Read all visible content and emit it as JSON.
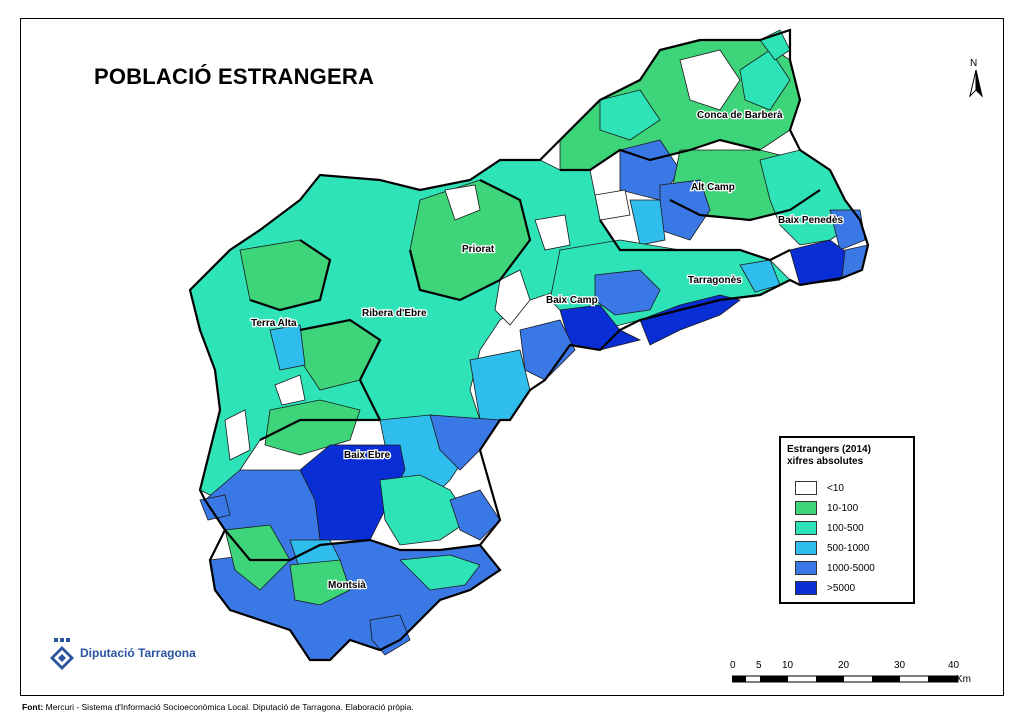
{
  "title": "POBLACIÓ ESTRANGERA",
  "colors": {
    "lt10": "#ffffff",
    "c10_100": "#3dd47a",
    "c100_500": "#2ee3b8",
    "c500_1000": "#2fbdee",
    "c1000_5000": "#3a78e6",
    "gt5000": "#0a2ed6",
    "border": "#000000"
  },
  "regions": [
    {
      "name": "Conca de Barberà"
    },
    {
      "name": "Alt Camp"
    },
    {
      "name": "Baix Penedès"
    },
    {
      "name": "Priorat"
    },
    {
      "name": "Tarragonès"
    },
    {
      "name": "Baix Camp"
    },
    {
      "name": "Ribera d'Ebre"
    },
    {
      "name": "Terra Alta"
    },
    {
      "name": "Baix Ebre"
    },
    {
      "name": "Montsià"
    }
  ],
  "legend": {
    "title_line1": "Estrangers (2014)",
    "title_line2": "xifres absolutes",
    "items": [
      {
        "label": "<10",
        "color": "#ffffff"
      },
      {
        "label": "10-100",
        "color": "#3dd47a"
      },
      {
        "label": "100-500",
        "color": "#2ee3b8"
      },
      {
        "label": "500-1000",
        "color": "#2fbdee"
      },
      {
        "label": "1000-5000",
        "color": "#3a78e6"
      },
      {
        "label": ">5000",
        "color": "#0a2ed6"
      }
    ]
  },
  "north_arrow": {
    "label": "N",
    "icon": "north-arrow-icon"
  },
  "scale_bar": {
    "ticks": [
      "0",
      "5",
      "10",
      "20",
      "30",
      "40"
    ],
    "unit": "Km"
  },
  "logo": {
    "text": "Diputació Tarragona",
    "icon": "diputacio-logo-icon"
  },
  "footer": {
    "label": "Font:",
    "text": "Mercuri - Sistema d'Informació Socioeconòmica Local. Diputació de Tarragona. Elaboració pròpia."
  }
}
